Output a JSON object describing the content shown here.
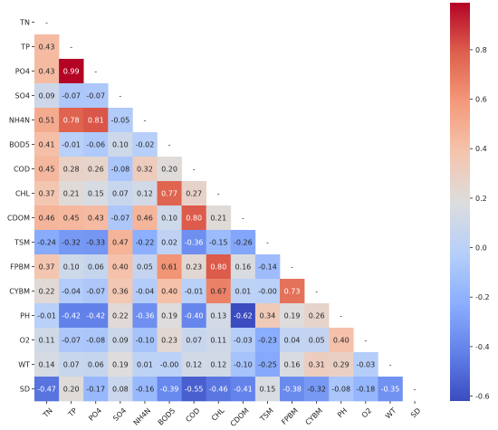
{
  "chart_data": {
    "type": "heatmap",
    "title": "",
    "variables": [
      "TN",
      "TP",
      "PO4",
      "SO4",
      "NH4N",
      "BOD5",
      "COD",
      "CHL",
      "CDOM",
      "TSM",
      "FPBM",
      "CYBM",
      "PH",
      "O2",
      "WT",
      "SD"
    ],
    "rows": [
      [
        "-"
      ],
      [
        "0.43",
        "-"
      ],
      [
        "0.43",
        "0.99",
        "-"
      ],
      [
        "0.09",
        "-0.07",
        "-0.07",
        "-"
      ],
      [
        "0.51",
        "0.78",
        "0.81",
        "-0.05",
        "-"
      ],
      [
        "0.41",
        "-0.01",
        "-0.06",
        "0.10",
        "-0.02",
        "-"
      ],
      [
        "0.45",
        "0.28",
        "0.26",
        "-0.08",
        "0.32",
        "0.20",
        "-"
      ],
      [
        "0.37",
        "0.21",
        "0.15",
        "0.07",
        "0.12",
        "0.77",
        "0.27",
        "-"
      ],
      [
        "0.46",
        "0.45",
        "0.43",
        "-0.07",
        "0.46",
        "0.10",
        "0.80",
        "0.21",
        "-"
      ],
      [
        "-0.24",
        "-0.32",
        "-0.33",
        "0.47",
        "-0.22",
        "0.02",
        "-0.36",
        "-0.15",
        "-0.26",
        "-"
      ],
      [
        "0.37",
        "0.10",
        "0.06",
        "0.40",
        "0.05",
        "0.61",
        "0.23",
        "0.80",
        "0.16",
        "-0.14",
        "-"
      ],
      [
        "0.22",
        "-0.04",
        "-0.07",
        "0.36",
        "-0.04",
        "0.40",
        "-0.01",
        "0.67",
        "0.01",
        "-0.00",
        "0.73",
        "-"
      ],
      [
        "-0.01",
        "-0.42",
        "-0.42",
        "0.22",
        "-0.36",
        "0.19",
        "-0.40",
        "0.13",
        "-0.62",
        "0.34",
        "0.19",
        "0.26",
        "-"
      ],
      [
        "0.11",
        "-0.07",
        "-0.08",
        "0.09",
        "-0.10",
        "0.23",
        "0.07",
        "0.11",
        "-0.03",
        "-0.23",
        "0.04",
        "0.05",
        "0.40",
        "-"
      ],
      [
        "0.14",
        "0.07",
        "0.06",
        "0.19",
        "0.01",
        "-0.00",
        "0.12",
        "0.12",
        "-0.10",
        "-0.25",
        "0.16",
        "0.31",
        "0.29",
        "-0.03",
        "-"
      ],
      [
        "-0.47",
        "0.20",
        "-0.17",
        "0.08",
        "-0.16",
        "-0.39",
        "-0.55",
        "-0.46",
        "-0.41",
        "0.15",
        "-0.38",
        "-0.32",
        "-0.08",
        "-0.18",
        "-0.35",
        "-"
      ]
    ],
    "colorbar": {
      "min": -0.62,
      "max": 0.99,
      "ticks": [
        "0.8",
        "0.6",
        "0.4",
        "0.2",
        "0.0",
        "-0.2",
        "-0.4",
        "-0.6"
      ]
    },
    "colormap": "coolwarm",
    "lower_triangle_only": true
  }
}
